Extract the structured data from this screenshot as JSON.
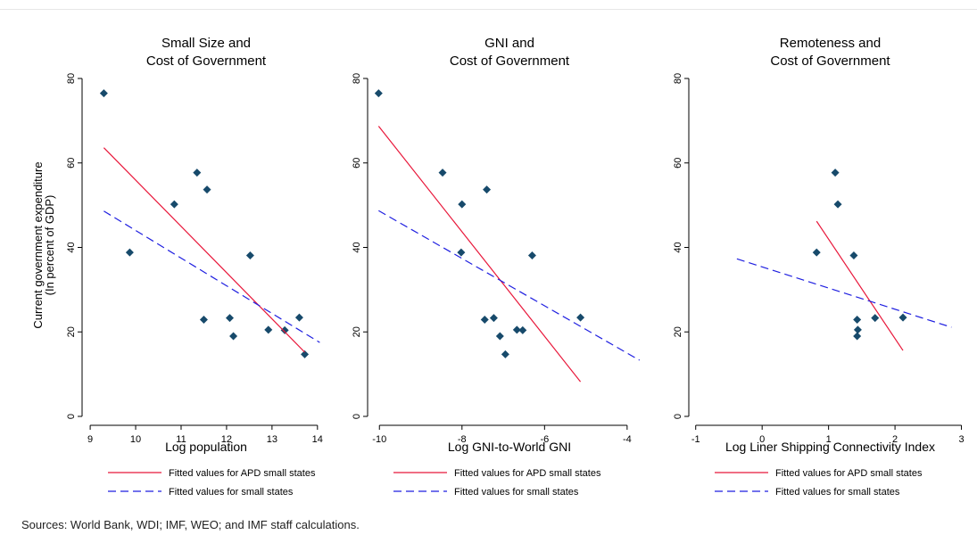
{
  "y_axis_label": [
    "Current government expenditure",
    "(In percent of GDP)"
  ],
  "source_note": "Sources: World Bank, WDI; IMF, WEO; and IMF staff calculations.",
  "colors": {
    "apd_fit": "#e8173a",
    "small_fit": "#1f1fe0",
    "points": "#174a6b"
  },
  "chart_data": [
    {
      "type": "scatter",
      "title": [
        "Small Size and",
        "Cost of Government"
      ],
      "xlabel": "Log population",
      "xlim": [
        8.9,
        14.2
      ],
      "ylim": [
        0,
        80
      ],
      "x_ticks": [
        9,
        10,
        11,
        12,
        13,
        14
      ],
      "x_tick_labels": [
        "9",
        "10",
        "11",
        "12",
        "13",
        "14"
      ],
      "y_ticks": [
        0,
        20,
        40,
        60,
        80
      ],
      "y_tick_labels": [
        "0",
        "20",
        "40",
        "60",
        "80"
      ],
      "points": [
        {
          "x": 9.3,
          "y": 76.5
        },
        {
          "x": 9.87,
          "y": 38.8
        },
        {
          "x": 10.85,
          "y": 50.2
        },
        {
          "x": 11.35,
          "y": 57.7
        },
        {
          "x": 11.5,
          "y": 22.9
        },
        {
          "x": 11.57,
          "y": 53.7
        },
        {
          "x": 12.07,
          "y": 23.3
        },
        {
          "x": 12.15,
          "y": 19.0
        },
        {
          "x": 12.52,
          "y": 38.1
        },
        {
          "x": 12.92,
          "y": 20.5
        },
        {
          "x": 13.28,
          "y": 20.4
        },
        {
          "x": 13.6,
          "y": 23.4
        },
        {
          "x": 13.72,
          "y": 14.7
        }
      ],
      "series": [
        {
          "name": "Fitted values for APD small states",
          "style": "solid",
          "x": [
            9.3,
            13.72
          ],
          "y": [
            63.6,
            15.2
          ]
        },
        {
          "name": "Fitted values for small states",
          "style": "dashed",
          "x": [
            9.3,
            14.05
          ],
          "y": [
            48.6,
            17.5
          ]
        }
      ],
      "legend_position": "bottom"
    },
    {
      "type": "scatter",
      "title": [
        "GNI and",
        "Cost of Government"
      ],
      "xlabel": "Log GNI-to-World GNI",
      "xlim": [
        -10.2,
        -3.5
      ],
      "ylim": [
        0,
        80
      ],
      "x_ticks": [
        -10,
        -8,
        -6,
        -4
      ],
      "x_tick_labels": [
        "-10",
        "-8",
        "-6",
        "-4"
      ],
      "y_ticks": [
        0,
        20,
        40,
        60,
        80
      ],
      "y_tick_labels": [
        "0",
        "20",
        "40",
        "60",
        "80"
      ],
      "points": [
        {
          "x": -10.02,
          "y": 76.5
        },
        {
          "x": -8.47,
          "y": 57.7
        },
        {
          "x": -8.0,
          "y": 50.2
        },
        {
          "x": -8.02,
          "y": 38.8
        },
        {
          "x": -7.4,
          "y": 53.7
        },
        {
          "x": -7.45,
          "y": 22.9
        },
        {
          "x": -7.23,
          "y": 23.3
        },
        {
          "x": -7.08,
          "y": 19.0
        },
        {
          "x": -6.95,
          "y": 14.7
        },
        {
          "x": -6.67,
          "y": 20.5
        },
        {
          "x": -6.53,
          "y": 20.4
        },
        {
          "x": -6.3,
          "y": 38.1
        },
        {
          "x": -5.13,
          "y": 23.4
        }
      ],
      "series": [
        {
          "name": "Fitted values for APD small states",
          "style": "solid",
          "x": [
            -10.02,
            -5.13
          ],
          "y": [
            68.7,
            8.2
          ]
        },
        {
          "name": "Fitted values for small states",
          "style": "dashed",
          "x": [
            -10.02,
            -3.7
          ],
          "y": [
            48.7,
            13.3
          ]
        }
      ],
      "legend_position": "bottom"
    },
    {
      "type": "scatter",
      "title": [
        "Remoteness and",
        "Cost of Government"
      ],
      "xlabel": "Log Liner Shipping Connectivity Index",
      "xlim": [
        -1.05,
        3.1
      ],
      "ylim": [
        0,
        80
      ],
      "x_ticks": [
        -1,
        0,
        1,
        2,
        3
      ],
      "x_tick_labels": [
        "-1",
        "0",
        "1",
        "2",
        "3"
      ],
      "y_ticks": [
        0,
        20,
        40,
        60,
        80
      ],
      "y_tick_labels": [
        "0",
        "20",
        "40",
        "60",
        "80"
      ],
      "points": [
        {
          "x": 0.82,
          "y": 38.8
        },
        {
          "x": 1.1,
          "y": 57.7
        },
        {
          "x": 1.14,
          "y": 50.2
        },
        {
          "x": 1.38,
          "y": 38.1
        },
        {
          "x": 1.43,
          "y": 22.9
        },
        {
          "x": 1.44,
          "y": 20.5
        },
        {
          "x": 1.43,
          "y": 19.0
        },
        {
          "x": 1.7,
          "y": 23.3
        },
        {
          "x": 2.12,
          "y": 23.4
        }
      ],
      "series": [
        {
          "name": "Fitted values for APD small states",
          "style": "solid",
          "x": [
            0.82,
            2.12
          ],
          "y": [
            46.2,
            15.6
          ]
        },
        {
          "name": "Fitted values for small states",
          "style": "dashed",
          "x": [
            -0.38,
            2.85
          ],
          "y": [
            37.3,
            21.1
          ]
        }
      ],
      "legend_position": "bottom"
    }
  ]
}
